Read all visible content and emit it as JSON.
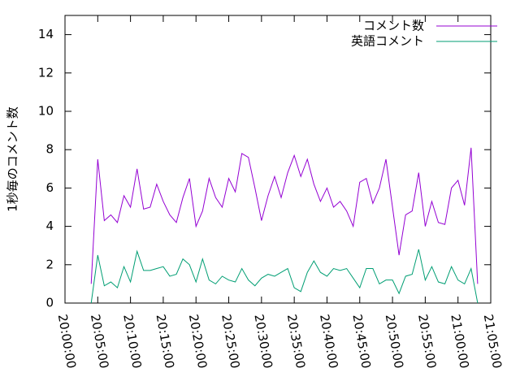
{
  "chart_data": {
    "type": "line",
    "y_label": "1秒毎のコメント数",
    "x": [
      "20:04:00",
      "20:05:00",
      "20:06:00",
      "20:07:00",
      "20:08:00",
      "20:09:00",
      "20:10:00",
      "20:11:00",
      "20:12:00",
      "20:13:00",
      "20:14:00",
      "20:15:00",
      "20:16:00",
      "20:17:00",
      "20:18:00",
      "20:19:00",
      "20:20:00",
      "20:21:00",
      "20:22:00",
      "20:23:00",
      "20:24:00",
      "20:25:00",
      "20:26:00",
      "20:27:00",
      "20:28:00",
      "20:29:00",
      "20:30:00",
      "20:31:00",
      "20:32:00",
      "20:33:00",
      "20:34:00",
      "20:35:00",
      "20:36:00",
      "20:37:00",
      "20:38:00",
      "20:39:00",
      "20:40:00",
      "20:41:00",
      "20:42:00",
      "20:43:00",
      "20:44:00",
      "20:45:00",
      "20:46:00",
      "20:47:00",
      "20:48:00",
      "20:49:00",
      "20:50:00",
      "20:51:00",
      "20:52:00",
      "20:53:00",
      "20:54:00",
      "20:55:00",
      "20:56:00",
      "20:57:00",
      "20:58:00",
      "20:59:00",
      "21:00:00",
      "21:01:00",
      "21:02:00",
      "21:03:00"
    ],
    "series": [
      {
        "name": "コメント数",
        "color": "#9400d3",
        "values": [
          1.0,
          7.5,
          4.3,
          4.6,
          4.2,
          5.6,
          5.0,
          7.0,
          4.9,
          5.0,
          6.2,
          5.3,
          4.6,
          4.2,
          5.5,
          6.5,
          4.0,
          4.8,
          6.5,
          5.5,
          5.0,
          6.5,
          5.8,
          7.8,
          7.6,
          6.0,
          4.3,
          5.6,
          6.6,
          5.5,
          6.8,
          7.7,
          6.6,
          7.5,
          6.2,
          5.3,
          6.0,
          5.0,
          5.3,
          4.8,
          4.0,
          6.3,
          6.5,
          5.2,
          6.0,
          7.5,
          5.0,
          2.5,
          4.6,
          4.8,
          6.8,
          4.0,
          5.3,
          4.2,
          4.1,
          6.0,
          6.4,
          5.1,
          8.1,
          1.0
        ]
      },
      {
        "name": "英語コメント",
        "color": "#009e73",
        "values": [
          0.0,
          2.5,
          0.9,
          1.1,
          0.8,
          1.9,
          1.1,
          2.7,
          1.7,
          1.7,
          1.8,
          1.9,
          1.4,
          1.5,
          2.3,
          2.0,
          1.1,
          2.3,
          1.2,
          1.0,
          1.4,
          1.2,
          1.1,
          1.8,
          1.2,
          0.9,
          1.3,
          1.5,
          1.4,
          1.6,
          1.8,
          0.8,
          0.6,
          1.6,
          2.2,
          1.6,
          1.4,
          1.8,
          1.7,
          1.8,
          1.3,
          0.8,
          1.8,
          1.8,
          1.0,
          1.2,
          1.2,
          0.5,
          1.4,
          1.5,
          2.8,
          1.2,
          1.9,
          1.1,
          1.0,
          1.9,
          1.2,
          1.0,
          1.8,
          0.0
        ]
      }
    ],
    "xlim": [
      "20:00:00",
      "21:05:00"
    ],
    "xticks": [
      "20:00:00",
      "20:05:00",
      "20:10:00",
      "20:15:00",
      "20:20:00",
      "20:25:00",
      "20:30:00",
      "20:35:00",
      "20:40:00",
      "20:45:00",
      "20:50:00",
      "20:55:00",
      "21:00:00",
      "21:05:00"
    ],
    "ylim": [
      0,
      15
    ],
    "yticks": [
      0,
      2,
      4,
      6,
      8,
      10,
      12,
      14
    ],
    "legend": "top-right",
    "grid": false
  }
}
